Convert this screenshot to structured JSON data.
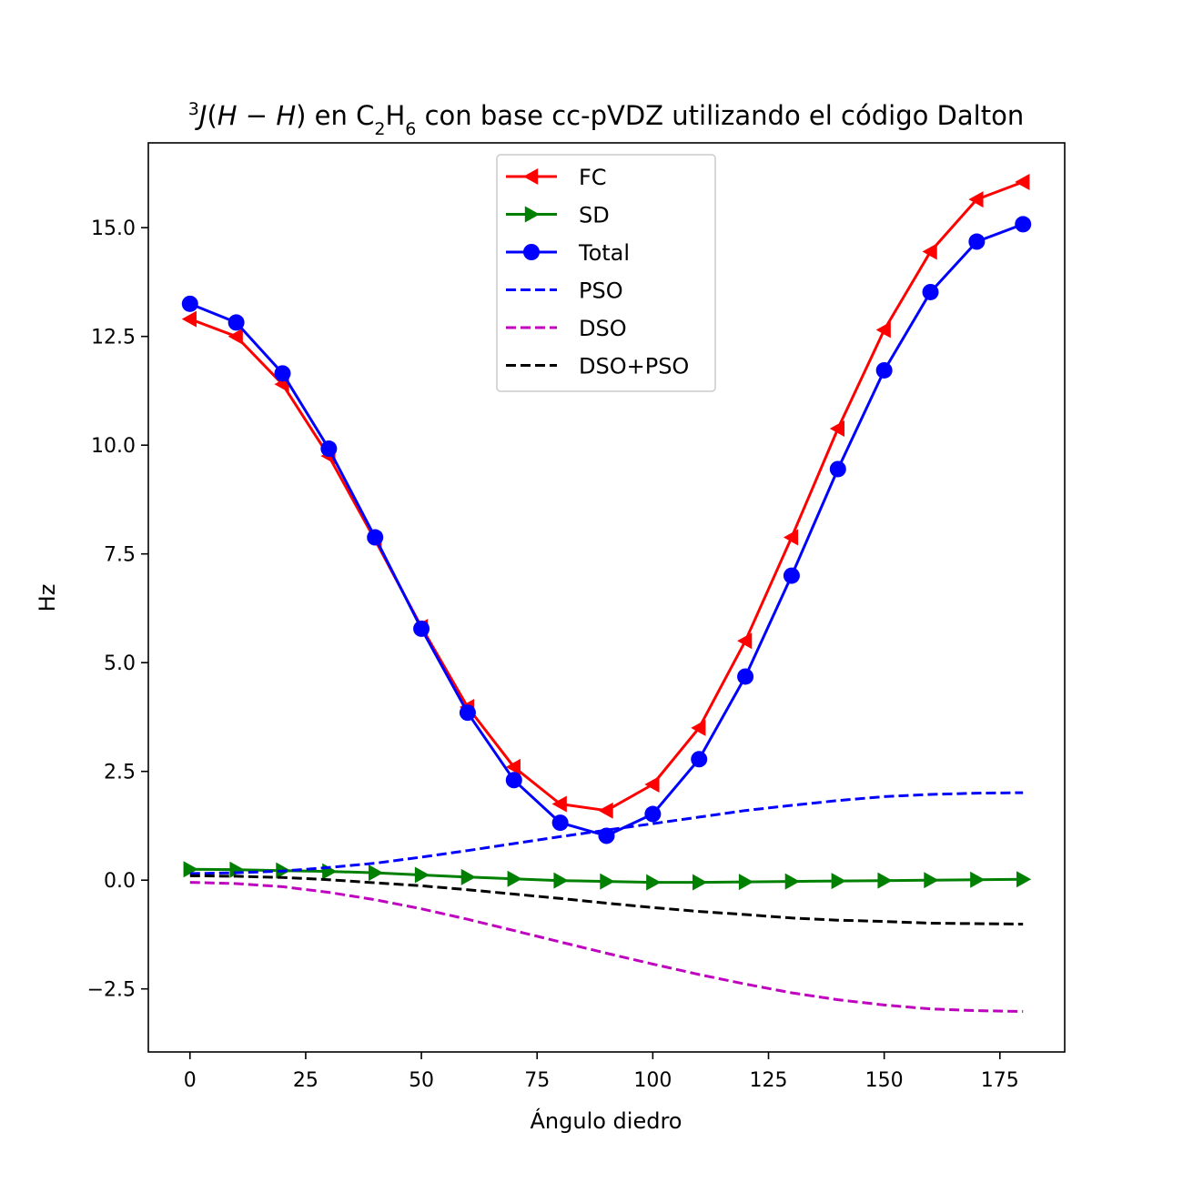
{
  "chart_data": {
    "type": "line",
    "title_parts": {
      "sup": "3",
      "j": "J",
      "open": "(",
      "h1": "H",
      "minus": " − ",
      "h2": "H",
      "close": ")",
      "mid1": " en C",
      "sub1": "2",
      "mid2": "H",
      "sub2": "6",
      "rest": " con base cc-pVDZ utilizando el código Dalton"
    },
    "xlabel": "Ángulo diedro",
    "ylabel": "Hz",
    "xlim": [
      -9,
      189
    ],
    "ylim": [
      -3.95,
      16.95
    ],
    "xticks": [
      0,
      25,
      50,
      75,
      100,
      125,
      150,
      175
    ],
    "xtick_labels": [
      "0",
      "25",
      "50",
      "75",
      "100",
      "125",
      "150",
      "175"
    ],
    "yticks": [
      -2.5,
      0.0,
      2.5,
      5.0,
      7.5,
      10.0,
      12.5,
      15.0
    ],
    "ytick_labels": [
      "−2.5",
      "0.0",
      "2.5",
      "5.0",
      "7.5",
      "10.0",
      "12.5",
      "15.0"
    ],
    "grid": false,
    "legend_position": "upper center",
    "x": [
      0,
      10,
      20,
      30,
      40,
      50,
      60,
      70,
      80,
      90,
      100,
      110,
      120,
      130,
      140,
      150,
      160,
      170,
      180
    ],
    "series": [
      {
        "name": "FC",
        "color": "#ff0000",
        "style": "solid",
        "marker": "triangle-left",
        "values": [
          12.9,
          12.5,
          11.4,
          9.75,
          7.82,
          5.82,
          3.98,
          2.6,
          1.75,
          1.6,
          2.2,
          3.5,
          5.5,
          7.88,
          10.38,
          12.65,
          14.45,
          15.65,
          16.05
        ]
      },
      {
        "name": "SD",
        "color": "#008000",
        "style": "solid",
        "marker": "triangle-right",
        "values": [
          0.25,
          0.24,
          0.22,
          0.2,
          0.17,
          0.12,
          0.07,
          0.03,
          -0.01,
          -0.03,
          -0.05,
          -0.05,
          -0.04,
          -0.03,
          -0.02,
          -0.01,
          0.0,
          0.01,
          0.02
        ]
      },
      {
        "name": "Total",
        "color": "#0000ff",
        "style": "solid",
        "marker": "circle",
        "values": [
          13.25,
          12.82,
          11.65,
          9.92,
          7.88,
          5.78,
          3.85,
          2.3,
          1.32,
          1.02,
          1.52,
          2.78,
          4.68,
          7.0,
          9.45,
          11.72,
          13.52,
          14.68,
          15.08
        ]
      },
      {
        "name": "PSO",
        "color": "#0000ff",
        "style": "dashed",
        "marker": "none",
        "values": [
          0.15,
          0.17,
          0.21,
          0.29,
          0.39,
          0.53,
          0.68,
          0.84,
          1.0,
          1.15,
          1.3,
          1.45,
          1.6,
          1.72,
          1.83,
          1.92,
          1.97,
          2.0,
          2.01
        ]
      },
      {
        "name": "DSO",
        "color": "#bf00bf",
        "style": "dashed",
        "marker": "none",
        "values": [
          -0.05,
          -0.08,
          -0.15,
          -0.28,
          -0.45,
          -0.66,
          -0.9,
          -1.16,
          -1.42,
          -1.68,
          -1.93,
          -2.17,
          -2.39,
          -2.59,
          -2.75,
          -2.87,
          -2.96,
          -3.0,
          -3.02
        ]
      },
      {
        "name": "DSO+PSO",
        "color": "#000000",
        "style": "dashed",
        "marker": "none",
        "values": [
          0.1,
          0.09,
          0.06,
          0.01,
          -0.06,
          -0.13,
          -0.22,
          -0.32,
          -0.42,
          -0.53,
          -0.63,
          -0.72,
          -0.79,
          -0.87,
          -0.92,
          -0.95,
          -0.99,
          -1.0,
          -1.01
        ]
      }
    ]
  }
}
